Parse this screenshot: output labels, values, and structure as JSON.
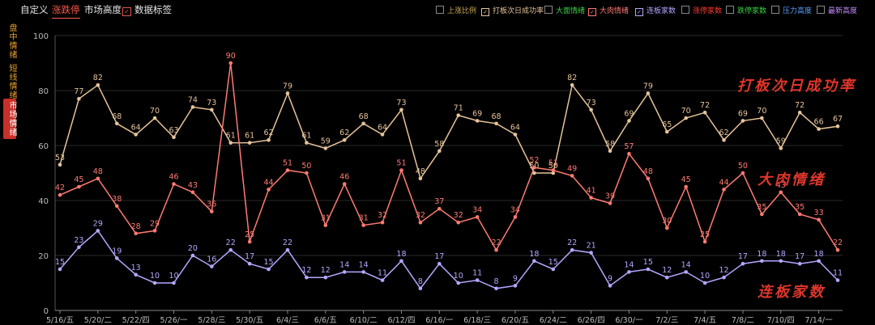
{
  "toolbar": {
    "tabs": [
      {
        "label": "自定义",
        "active": false
      },
      {
        "label": "涨跌停",
        "active": true
      },
      {
        "label": "市场高度",
        "active": false
      }
    ],
    "data_labels_toggle": {
      "label": "数据标签",
      "checked": true
    }
  },
  "side_tabs": [
    {
      "label": "盘中情绪",
      "active": false
    },
    {
      "label": "短线情绪",
      "active": false
    },
    {
      "label": "市场情绪",
      "active": true
    }
  ],
  "legend": [
    {
      "label": "上涨比例",
      "checked": false,
      "color": "#c9a85a"
    },
    {
      "label": "打板次日成功率",
      "checked": true,
      "color": "#e6c49a"
    },
    {
      "label": "大面情绪",
      "checked": false,
      "color": "#3ecf4a"
    },
    {
      "label": "大肉情绪",
      "checked": true,
      "color": "#ff7a72"
    },
    {
      "label": "连板家数",
      "checked": true,
      "color": "#b3a8ff"
    },
    {
      "label": "涨停家数",
      "checked": false,
      "color": "#ff3b30"
    },
    {
      "label": "跌停家数",
      "checked": false,
      "color": "#35d43f"
    },
    {
      "label": "压力高度",
      "checked": false,
      "color": "#5aa0ff"
    },
    {
      "label": "最新高度",
      "checked": false,
      "color": "#c48cff"
    }
  ],
  "callouts": {
    "series1": "打板次日成功率",
    "series2": "大肉情绪",
    "series3": "连板家数"
  },
  "chart_data": {
    "type": "line",
    "ylim": [
      0,
      100
    ],
    "yticks": [
      0,
      20,
      40,
      60,
      80,
      100
    ],
    "x_tick_labels": [
      "5/16/五",
      "5/20/二",
      "5/22/四",
      "5/26/一",
      "5/28/三",
      "5/30/五",
      "6/4/三",
      "6/6/五",
      "6/10/二",
      "6/12/四",
      "6/16/一",
      "6/18/三",
      "6/20/五",
      "6/24/二",
      "6/26/四",
      "6/30/一",
      "7/2/三",
      "7/4/五",
      "7/8/二",
      "7/10/四",
      "7/14/一"
    ],
    "grid": true,
    "series": [
      {
        "name": "打板次日成功率",
        "color": "#e6c49a",
        "values": [
          53,
          77,
          82,
          68,
          64,
          70,
          63,
          74,
          73,
          61,
          61,
          62,
          79,
          61,
          59,
          62,
          68,
          64,
          73,
          48,
          58,
          71,
          69,
          68,
          64,
          50,
          50,
          82,
          73,
          58,
          69,
          79,
          65,
          70,
          72,
          62,
          69,
          70,
          59,
          72,
          66,
          67
        ]
      },
      {
        "name": "大肉情绪",
        "color": "#ff7a72",
        "values": [
          42,
          45,
          48,
          38,
          28,
          29,
          46,
          43,
          36,
          90,
          25,
          44,
          51,
          50,
          31,
          46,
          31,
          32,
          51,
          32,
          37,
          32,
          34,
          22,
          34,
          52,
          51,
          49,
          41,
          39,
          57,
          48,
          30,
          45,
          25,
          44,
          50,
          35,
          43,
          35,
          33,
          22
        ]
      },
      {
        "name": "连板家数",
        "color": "#b3a8ff",
        "values": [
          15,
          23,
          29,
          19,
          13,
          10,
          10,
          20,
          16,
          22,
          17,
          15,
          22,
          12,
          12,
          14,
          14,
          11,
          18,
          8,
          17,
          10,
          11,
          8,
          9,
          18,
          15,
          22,
          21,
          9,
          14,
          15,
          12,
          14,
          10,
          12,
          17,
          18,
          18,
          17,
          18,
          11
        ]
      }
    ]
  }
}
